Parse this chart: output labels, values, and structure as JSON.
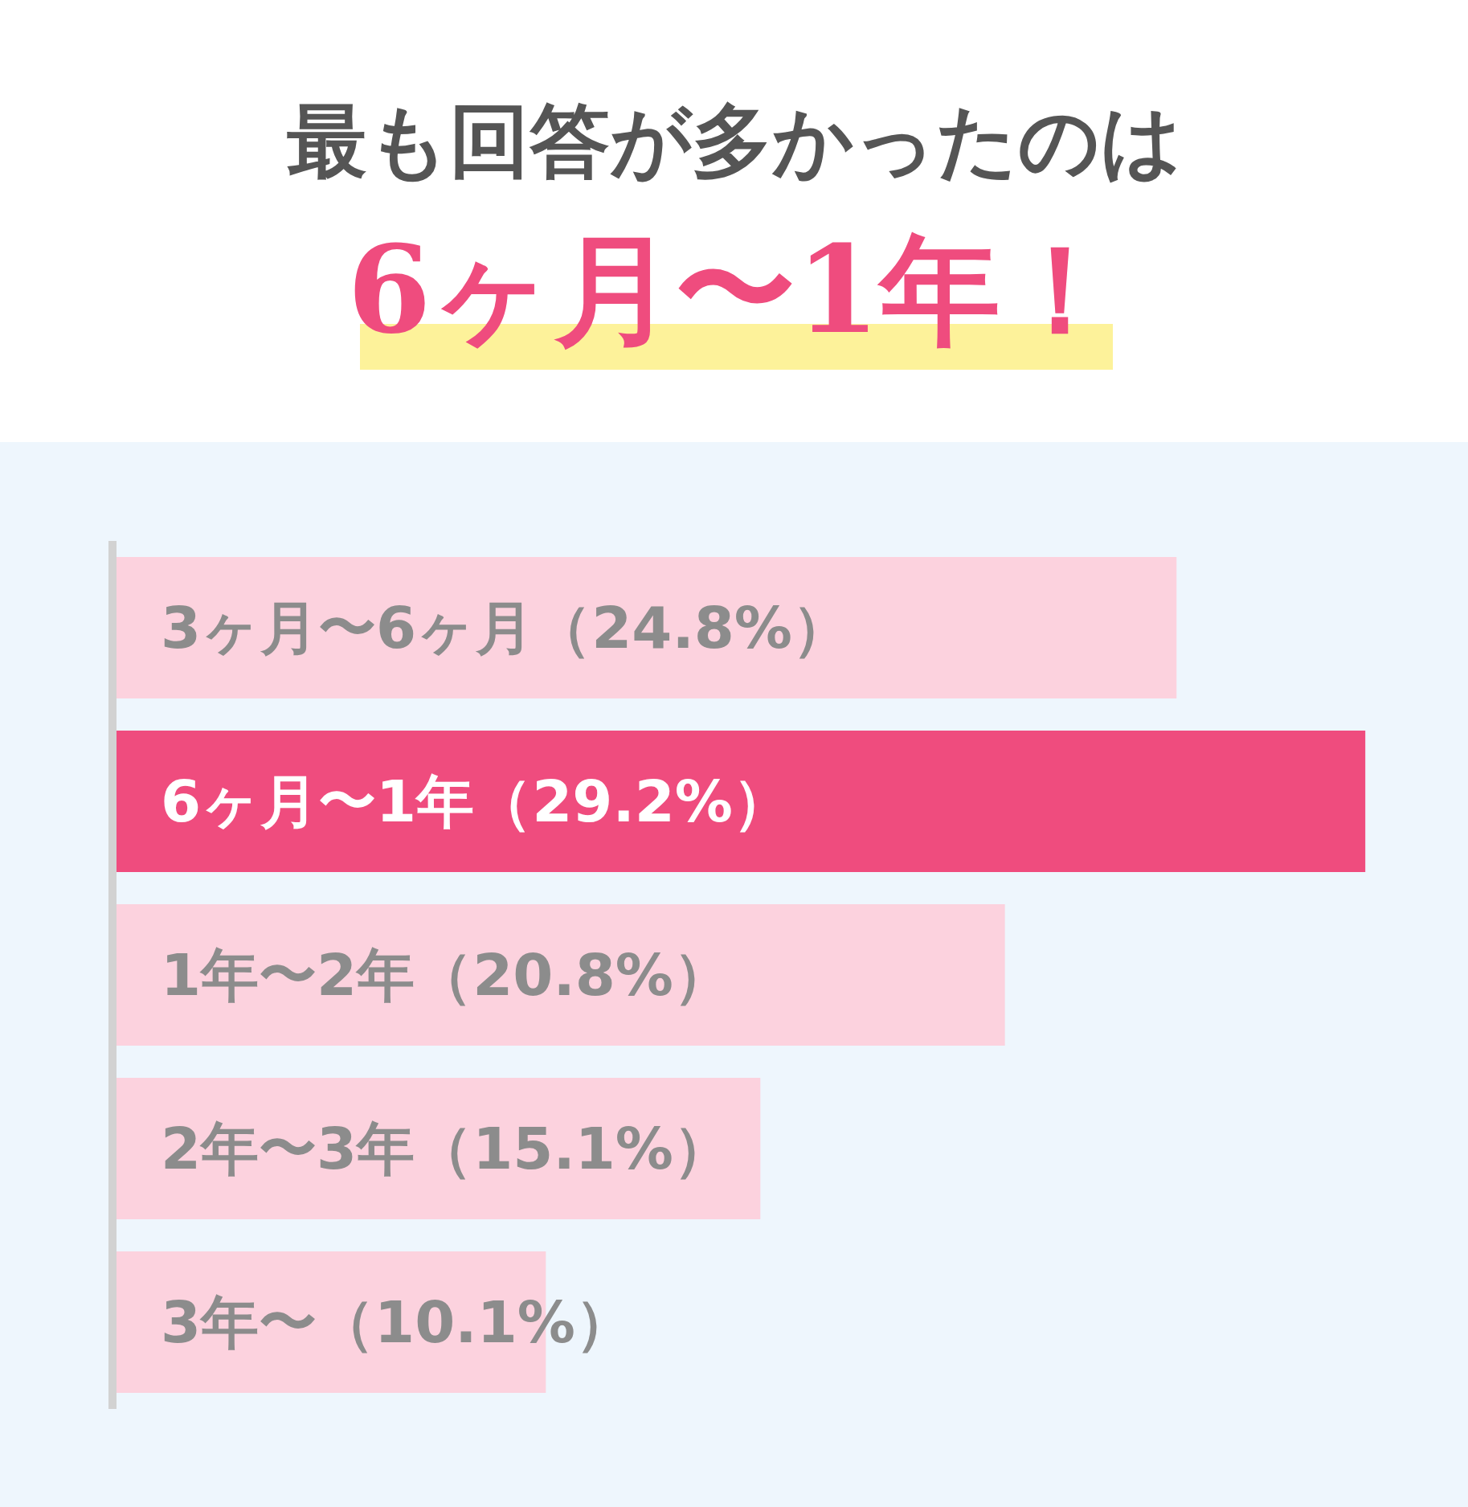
{
  "chart_data": {
    "type": "bar",
    "orientation": "horizontal",
    "title": "最も回答が多かったのは",
    "subtitle": "6ヶ月〜1年！",
    "categories": [
      "3ヶ月〜6ヶ月",
      "6ヶ月〜1年",
      "1年〜2年",
      "2年〜3年",
      "3年〜"
    ],
    "values": [
      24.8,
      29.2,
      20.8,
      15.1,
      10.1
    ],
    "value_labels": [
      "（24.8%）",
      "（29.2%）",
      "（20.8%）",
      "（15.1%）",
      "（10.1%）"
    ],
    "colors": [
      "#fcd2de",
      "#ef4c7e",
      "#fcd2de",
      "#fcd2de",
      "#fcd2de"
    ],
    "xlim": [
      0,
      31.5
    ],
    "tick_labels": false
  }
}
